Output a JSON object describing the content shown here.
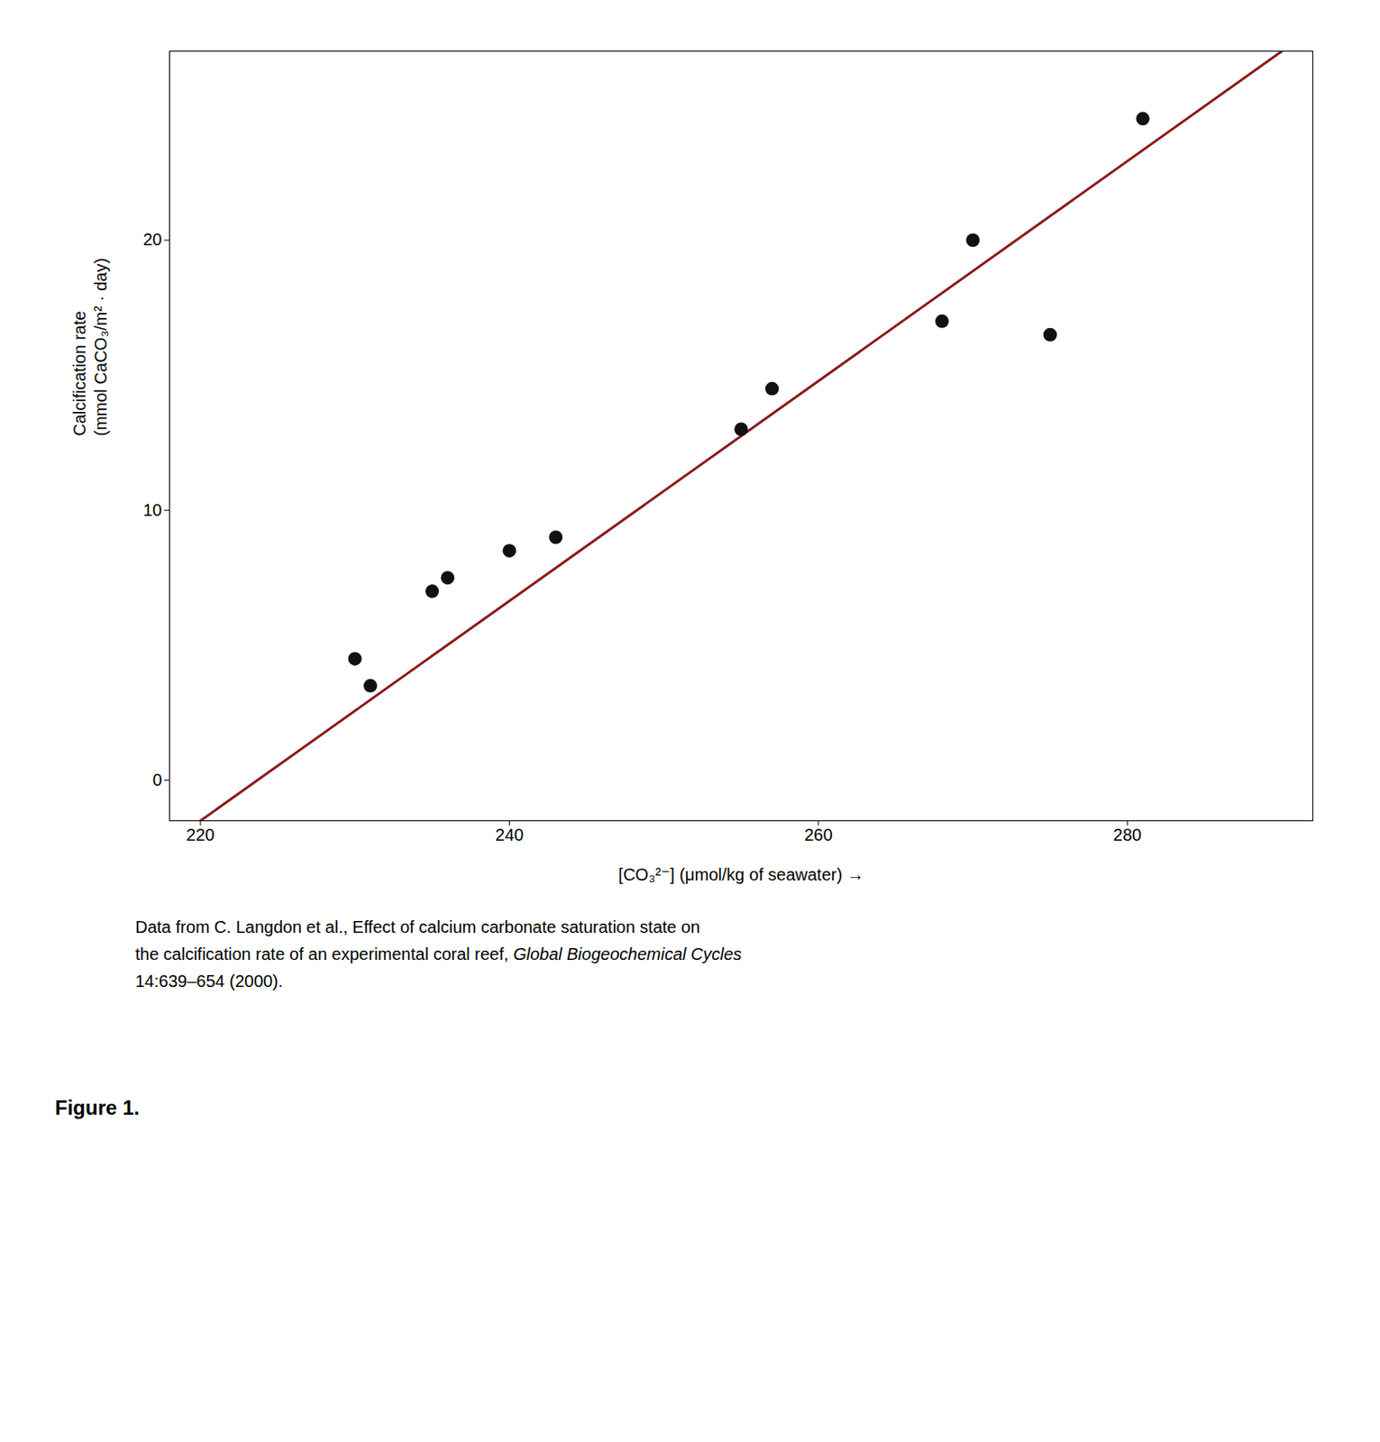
{
  "chart_data": {
    "type": "scatter",
    "xlabel": "[CO₃²⁻] (μmol/kg of seawater)",
    "ylabel": "Calcification rate\n(mmol CaCO₃/m² · day)",
    "series": [
      {
        "type": "line",
        "color": "#8B1A1A",
        "x": [
          220,
          290
        ],
        "values": [
          -1.5,
          27.0
        ]
      },
      {
        "type": "scatter",
        "color": "#111111",
        "x": [
          230,
          231,
          235,
          236,
          240,
          243,
          255,
          257,
          268,
          270,
          275,
          281
        ],
        "values": [
          4.5,
          3.5,
          7.0,
          7.5,
          8.5,
          9.0,
          13.0,
          14.5,
          17.0,
          20.0,
          16.5,
          24.5
        ]
      }
    ],
    "xlim": [
      218,
      292
    ],
    "ylim": [
      -1.5,
      27
    ],
    "xticks": [
      220,
      240,
      260,
      280
    ],
    "yticks": [
      0,
      10,
      20
    ],
    "caption": [
      [
        "Data from C. Langdon et al., Effect of calcium carbonate saturation state on"
      ],
      [
        "the calcification rate of an experimental coral reef, ",
        "Global Biogeochemical Cycles"
      ],
      [
        "14:639–654 (2000)."
      ]
    ],
    "annotations": [
      "Figure 1."
    ]
  }
}
